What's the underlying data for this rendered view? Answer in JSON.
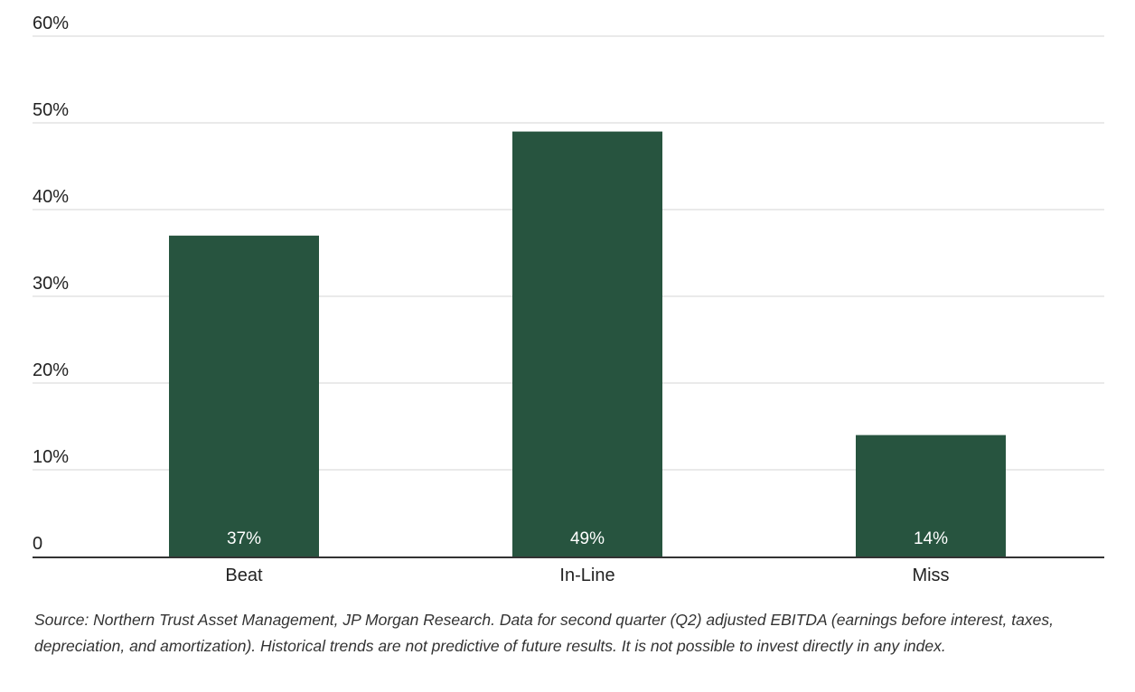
{
  "chart_data": {
    "type": "bar",
    "categories": [
      "Beat",
      "In-Line",
      "Miss"
    ],
    "values": [
      37,
      49,
      14
    ],
    "data_labels": [
      "37%",
      "49%",
      "14%"
    ],
    "y_ticks": [
      {
        "value": 0,
        "label": "0"
      },
      {
        "value": 10,
        "label": "10%"
      },
      {
        "value": 20,
        "label": "20%"
      },
      {
        "value": 30,
        "label": "30%"
      },
      {
        "value": 40,
        "label": "40%"
      },
      {
        "value": 50,
        "label": "50%"
      },
      {
        "value": 60,
        "label": "60%"
      }
    ],
    "ylim": [
      0,
      60
    ],
    "grid": true,
    "legend": "none",
    "bar_color": "#27543f",
    "title": "",
    "xlabel": "",
    "ylabel": ""
  },
  "source_note": "Source: Northern Trust Asset Management, JP Morgan Research. Data for second quarter (Q2) adjusted EBITDA (earnings before interest, taxes, depreciation, and amortization). Historical trends are not predictive of future results. It is not possible to invest directly in any index."
}
